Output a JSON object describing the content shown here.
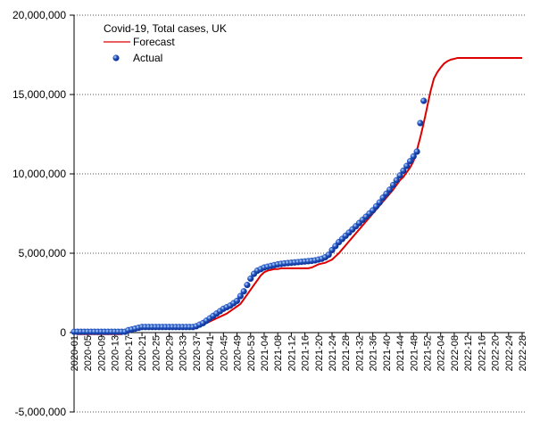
{
  "chart_data": {
    "type": "line",
    "legend_title": "Covid-19, Total cases, UK",
    "categories": [
      "2020-01",
      null,
      null,
      null,
      "2020-05",
      null,
      null,
      null,
      "2020-09",
      null,
      null,
      null,
      "2020-13",
      null,
      null,
      null,
      "2020-17",
      null,
      null,
      null,
      "2020-21",
      null,
      null,
      null,
      "2020-25",
      null,
      null,
      null,
      "2020-29",
      null,
      null,
      null,
      "2020-33",
      null,
      null,
      null,
      "2020-37",
      null,
      null,
      null,
      "2020-41",
      null,
      null,
      null,
      "2020-45",
      null,
      null,
      null,
      "2020-49",
      null,
      null,
      null,
      "2020-53",
      null,
      null,
      null,
      "2021-04",
      null,
      null,
      null,
      "2021-08",
      null,
      null,
      null,
      "2021-12",
      null,
      null,
      null,
      "2021-16",
      null,
      null,
      null,
      "2021-20",
      null,
      null,
      null,
      "2021-24",
      null,
      null,
      null,
      "2021-28",
      null,
      null,
      null,
      "2021-32",
      null,
      null,
      null,
      "2021-36",
      null,
      null,
      null,
      "2021-40",
      null,
      null,
      null,
      "2021-44",
      null,
      null,
      null,
      "2021-48",
      null,
      null,
      null,
      "2021-52",
      null,
      null,
      null,
      "2022-04",
      null,
      null,
      null,
      "2022-08",
      null,
      null,
      null,
      "2022-12",
      null,
      null,
      null,
      "2022-16",
      null,
      null,
      null,
      "2022-20",
      null,
      null,
      null,
      "2022-24",
      null,
      null,
      null,
      "2022-28"
    ],
    "series": [
      {
        "name": "Forecast",
        "color": "#dd0000",
        "style": "line",
        "values": [
          0,
          -100000,
          -100000,
          -100000,
          -100000,
          -100000,
          -100000,
          -100000,
          -100000,
          -100000,
          -100000,
          -100000,
          -100000,
          -100000,
          -100000,
          0,
          100000,
          150000,
          200000,
          250000,
          250000,
          300000,
          300000,
          300000,
          300000,
          300000,
          300000,
          300000,
          300000,
          300000,
          300000,
          300000,
          300000,
          300000,
          300000,
          300000,
          350000,
          400000,
          500000,
          600000,
          700000,
          800000,
          900000,
          1000000,
          1100000,
          1200000,
          1350000,
          1500000,
          1650000,
          1800000,
          2100000,
          2400000,
          2700000,
          3000000,
          3300000,
          3600000,
          3800000,
          3900000,
          3950000,
          4000000,
          4000000,
          4050000,
          4050000,
          4050000,
          4050000,
          4050000,
          4050000,
          4050000,
          4050000,
          4050000,
          4100000,
          4200000,
          4300000,
          4350000,
          4400000,
          4500000,
          4600000,
          4800000,
          5000000,
          5250000,
          5500000,
          5750000,
          6000000,
          6250000,
          6500000,
          6750000,
          7000000,
          7250000,
          7500000,
          7750000,
          8000000,
          8250000,
          8500000,
          8750000,
          9000000,
          9300000,
          9600000,
          9800000,
          10100000,
          10400000,
          10800000,
          11500000,
          12300000,
          13200000,
          14200000,
          15200000,
          16000000,
          16400000,
          16700000,
          16950000,
          17100000,
          17200000,
          17250000,
          17300000,
          17300000,
          17300000,
          17300000,
          17300000,
          17300000,
          17300000,
          17300000,
          17300000,
          17300000,
          17300000,
          17300000,
          17300000,
          17300000,
          17300000,
          17300000,
          17300000,
          17300000,
          17300000,
          17300000
        ]
      },
      {
        "name": "Actual",
        "color": "#1f4fbf",
        "style": "dots",
        "values": [
          50000,
          50000,
          50000,
          50000,
          50000,
          50000,
          50000,
          50000,
          50000,
          50000,
          50000,
          50000,
          50000,
          50000,
          50000,
          50000,
          150000,
          200000,
          250000,
          300000,
          350000,
          350000,
          350000,
          350000,
          350000,
          350000,
          350000,
          350000,
          350000,
          350000,
          350000,
          350000,
          350000,
          350000,
          350000,
          350000,
          400000,
          500000,
          600000,
          750000,
          900000,
          1050000,
          1200000,
          1350000,
          1500000,
          1600000,
          1700000,
          1850000,
          2000000,
          2300000,
          2600000,
          3000000,
          3400000,
          3700000,
          3900000,
          4000000,
          4100000,
          4150000,
          4200000,
          4250000,
          4300000,
          4330000,
          4360000,
          4380000,
          4400000,
          4420000,
          4440000,
          4460000,
          4480000,
          4500000,
          4520000,
          4550000,
          4600000,
          4650000,
          4750000,
          4900000,
          5200000,
          5450000,
          5700000,
          5900000,
          6100000,
          6300000,
          6500000,
          6700000,
          6900000,
          7100000,
          7300000,
          7500000,
          7700000,
          7950000,
          8200000,
          8500000,
          8750000,
          9000000,
          9300000,
          9600000,
          9900000,
          10200000,
          10500000,
          10800000,
          11100000,
          11400000,
          13200000,
          14600000,
          null,
          null,
          null,
          null,
          null,
          null,
          null,
          null,
          null,
          null,
          null,
          null,
          null,
          null,
          null,
          null,
          null,
          null,
          null,
          null,
          null,
          null,
          null,
          null,
          null,
          null,
          null,
          null,
          null
        ]
      }
    ],
    "ylim": [
      -5000000,
      20000000
    ],
    "yticks": [
      {
        "value": -5000000,
        "label": "-5,000,000"
      },
      0,
      {
        "value": 5000000,
        "label": "5,000,000"
      },
      {
        "value": 10000000,
        "label": "10,000,000"
      },
      {
        "value": 15000000,
        "label": "15,000,000"
      },
      {
        "value": 20000000,
        "label": "20,000,000"
      }
    ],
    "grid": true
  }
}
